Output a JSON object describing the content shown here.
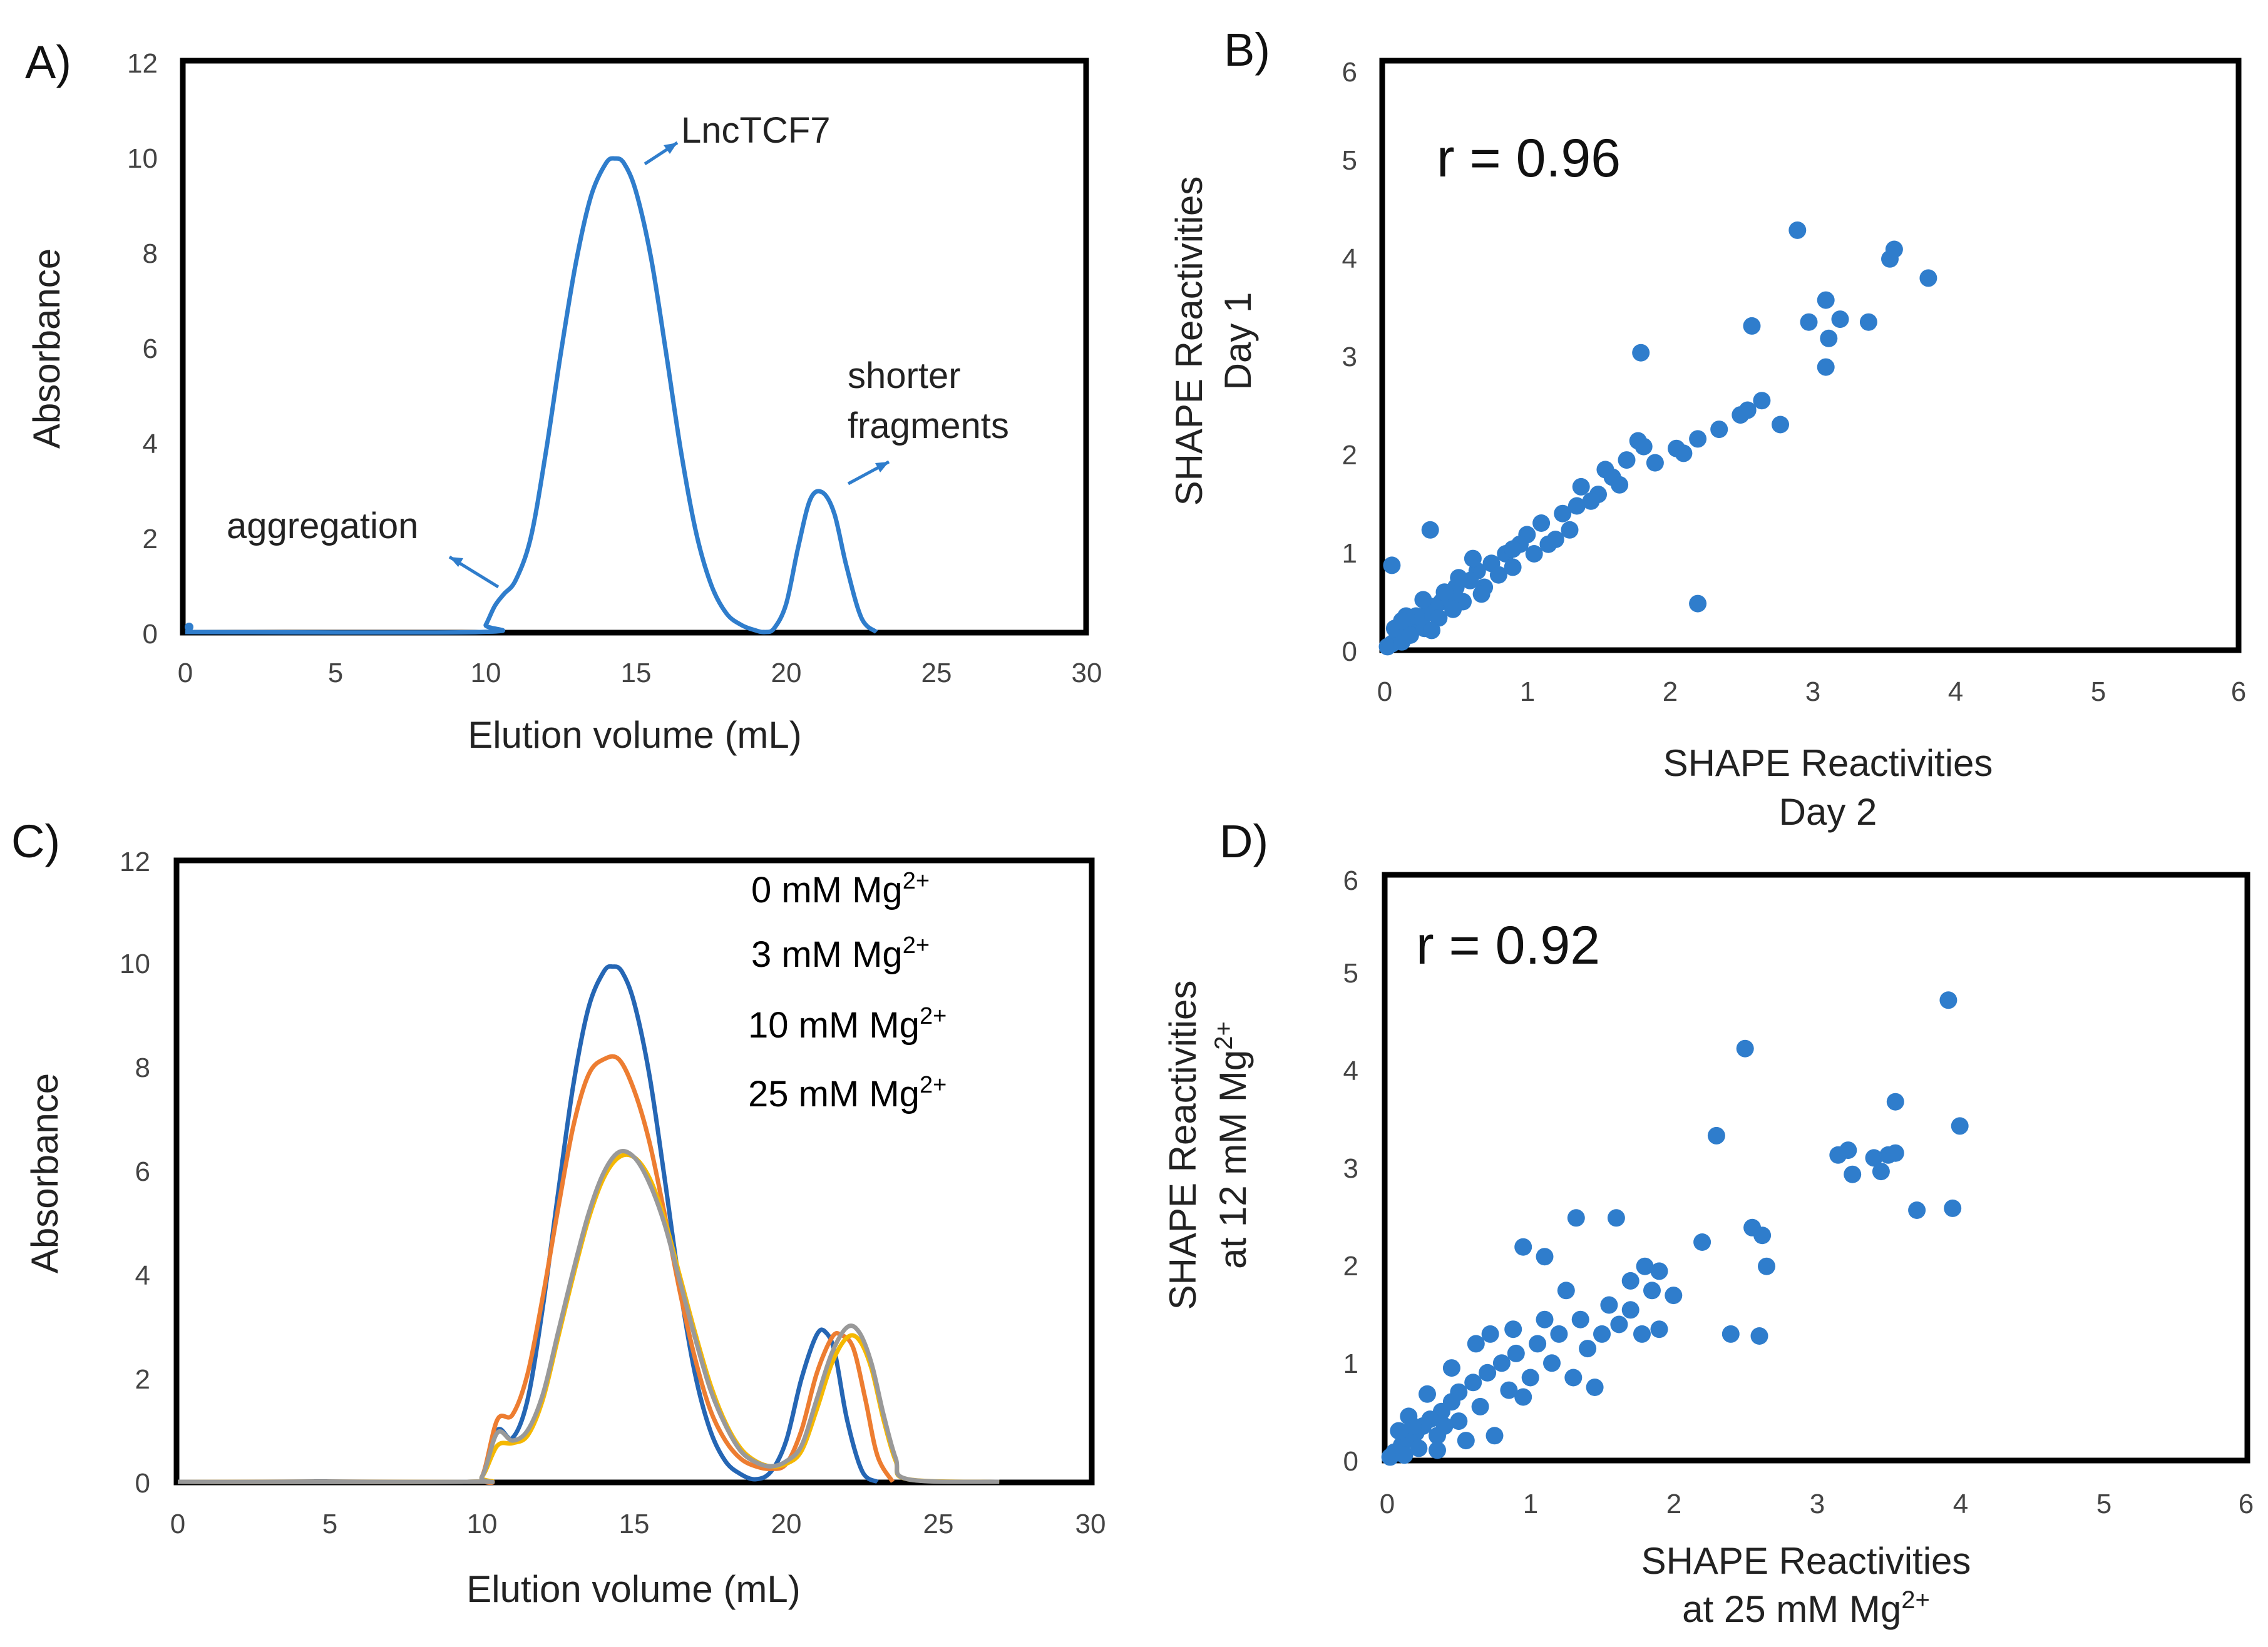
{
  "chart_data": [
    {
      "panel": "A)",
      "type": "line",
      "xlabel": "Elution volume (mL)",
      "ylabel": "Absorbance",
      "xlim": [
        0,
        30
      ],
      "ylim": [
        0,
        12
      ],
      "xticks": [
        "0",
        "5",
        "10",
        "15",
        "20",
        "25",
        "30"
      ],
      "yticks": [
        "0",
        "2",
        "4",
        "6",
        "8",
        "10",
        "12"
      ],
      "series": [
        {
          "name": "LncTCF7 elution",
          "color": "#2f7dcc",
          "x": [
            0,
            9.8,
            10,
            10.3,
            10.6,
            11,
            11.5,
            12,
            12.5,
            13,
            13.5,
            14,
            14.3,
            14.6,
            15,
            15.5,
            16,
            16.5,
            17,
            17.5,
            18,
            18.5,
            19,
            19.3,
            19.6,
            20,
            20.4,
            20.8,
            21.2,
            21.6,
            22,
            22.5,
            23
          ],
          "y": [
            0,
            0,
            0.15,
            0.55,
            0.8,
            1.1,
            2.0,
            3.8,
            5.9,
            7.8,
            9.2,
            9.9,
            10.0,
            9.9,
            9.3,
            7.9,
            5.9,
            3.8,
            2.1,
            1.0,
            0.4,
            0.15,
            0.03,
            0.0,
            0.08,
            0.6,
            1.8,
            2.8,
            2.95,
            2.5,
            1.4,
            0.3,
            0.0
          ]
        }
      ],
      "annotations": [
        {
          "text": "LncTCF7"
        },
        {
          "text": "aggregation"
        },
        {
          "text": "shorter"
        },
        {
          "text": "fragments"
        }
      ]
    },
    {
      "panel": "B)",
      "type": "scatter",
      "xlabel_line1": "SHAPE Reactivities",
      "xlabel_line2": "Day 2",
      "ylabel_line1": "SHAPE Reactivities",
      "ylabel_line2": "Day 1",
      "xlim": [
        0,
        6
      ],
      "ylim": [
        0,
        6
      ],
      "xticks": [
        "0",
        "1",
        "2",
        "3",
        "4",
        "5",
        "6"
      ],
      "yticks": [
        "0",
        "1",
        "2",
        "3",
        "4",
        "5",
        "6"
      ],
      "r_label": "r = 0.96",
      "color": "#2f7dcc",
      "points": [
        [
          2.9,
          4.38
        ],
        [
          3.55,
          4.08
        ],
        [
          3.58,
          4.18
        ],
        [
          3.82,
          3.88
        ],
        [
          3.1,
          3.65
        ],
        [
          3.2,
          3.45
        ],
        [
          2.98,
          3.42
        ],
        [
          3.12,
          3.25
        ],
        [
          3.4,
          3.42
        ],
        [
          2.58,
          3.38
        ],
        [
          3.1,
          2.95
        ],
        [
          1.8,
          3.1
        ],
        [
          2.65,
          2.6
        ],
        [
          2.55,
          2.5
        ],
        [
          2.5,
          2.45
        ],
        [
          2.78,
          2.35
        ],
        [
          2.35,
          2.3
        ],
        [
          2.2,
          2.2
        ],
        [
          2.05,
          2.1
        ],
        [
          1.78,
          2.18
        ],
        [
          1.82,
          2.12
        ],
        [
          1.7,
          1.98
        ],
        [
          1.55,
          1.88
        ],
        [
          1.38,
          1.7
        ],
        [
          1.5,
          1.62
        ],
        [
          1.25,
          1.42
        ],
        [
          1.1,
          1.32
        ],
        [
          1.0,
          1.2
        ],
        [
          0.05,
          0.88
        ],
        [
          0.32,
          1.25
        ],
        [
          2.2,
          0.48
        ],
        [
          1.6,
          1.8
        ],
        [
          1.9,
          1.95
        ],
        [
          2.1,
          2.05
        ],
        [
          1.45,
          1.55
        ],
        [
          1.65,
          1.72
        ],
        [
          0.95,
          1.1
        ],
        [
          0.85,
          1.0
        ],
        [
          0.75,
          0.9
        ],
        [
          0.65,
          0.82
        ],
        [
          0.6,
          0.72
        ],
        [
          0.5,
          0.65
        ],
        [
          0.45,
          0.55
        ],
        [
          0.4,
          0.5
        ],
        [
          0.35,
          0.45
        ],
        [
          0.3,
          0.38
        ],
        [
          0.25,
          0.3
        ],
        [
          0.2,
          0.25
        ],
        [
          0.15,
          0.2
        ],
        [
          0.1,
          0.14
        ],
        [
          0.08,
          0.1
        ],
        [
          0.05,
          0.06
        ],
        [
          0.02,
          0.03
        ],
        [
          0.12,
          0.08
        ],
        [
          0.18,
          0.15
        ],
        [
          0.28,
          0.22
        ],
        [
          0.38,
          0.33
        ],
        [
          0.55,
          0.5
        ],
        [
          0.7,
          0.65
        ],
        [
          0.8,
          0.78
        ],
        [
          0.9,
          0.86
        ],
        [
          1.05,
          1.0
        ],
        [
          1.15,
          1.1
        ],
        [
          1.3,
          1.25
        ],
        [
          0.22,
          0.35
        ],
        [
          0.42,
          0.6
        ],
        [
          0.62,
          0.95
        ],
        [
          0.48,
          0.42
        ],
        [
          0.33,
          0.2
        ],
        [
          0.15,
          0.35
        ],
        [
          0.07,
          0.22
        ],
        [
          0.9,
          1.05
        ],
        [
          1.2,
          1.15
        ],
        [
          1.35,
          1.5
        ],
        [
          0.68,
          0.58
        ],
        [
          0.52,
          0.75
        ],
        [
          0.27,
          0.52
        ],
        [
          0.12,
          0.3
        ]
      ]
    },
    {
      "panel": "C)",
      "type": "line",
      "xlabel": "Elution volume (mL)",
      "ylabel": "Absorbance",
      "xlim": [
        0,
        30
      ],
      "ylim": [
        0,
        12
      ],
      "xticks": [
        "0",
        "5",
        "10",
        "15",
        "20",
        "25",
        "30"
      ],
      "yticks": [
        "0",
        "2",
        "4",
        "6",
        "8",
        "10",
        "12"
      ],
      "series": [
        {
          "name": "0 mM Mg²⁺",
          "color": "#2566b4",
          "x": [
            0,
            9.5,
            10,
            10.5,
            11,
            11.5,
            12,
            12.5,
            13,
            13.5,
            14,
            14.3,
            14.6,
            15,
            15.5,
            16,
            16.5,
            17,
            17.5,
            18,
            18.5,
            19,
            19.5,
            20,
            20.5,
            21,
            21.3,
            21.6,
            22,
            22.5,
            23
          ],
          "y": [
            0,
            0,
            0.1,
            1.0,
            0.85,
            1.6,
            3.4,
            5.6,
            7.7,
            9.2,
            9.9,
            10.0,
            9.9,
            9.3,
            7.9,
            5.9,
            3.8,
            2.1,
            1.0,
            0.4,
            0.15,
            0.05,
            0.2,
            0.8,
            2.0,
            2.85,
            2.9,
            2.5,
            1.2,
            0.2,
            0.0
          ]
        },
        {
          "name": "3 mM Mg²⁺",
          "color": "#ed7d31",
          "x": [
            0,
            9.5,
            10,
            10.5,
            11,
            11.5,
            12,
            12.5,
            13,
            13.5,
            14,
            14.5,
            15,
            15.5,
            16,
            16.5,
            17,
            17.5,
            18,
            18.5,
            19,
            19.5,
            20,
            20.5,
            21,
            21.5,
            21.8,
            22.2,
            22.6,
            23,
            23.5
          ],
          "y": [
            0,
            0,
            0.1,
            1.2,
            1.3,
            2.1,
            3.6,
            5.3,
            6.9,
            7.9,
            8.2,
            8.2,
            7.6,
            6.6,
            5.2,
            3.7,
            2.4,
            1.4,
            0.8,
            0.45,
            0.3,
            0.25,
            0.35,
            1.0,
            2.1,
            2.8,
            2.85,
            2.6,
            1.6,
            0.5,
            0.0
          ]
        },
        {
          "name": "10 mM Mg²⁺",
          "color": "#f5b800",
          "x": [
            0,
            9.5,
            10,
            10.5,
            11,
            11.5,
            12,
            12.5,
            13,
            13.5,
            14,
            14.5,
            15,
            15.5,
            16,
            16.5,
            17,
            17.5,
            18,
            18.5,
            19,
            19.5,
            20,
            20.5,
            21,
            21.5,
            22,
            22.4,
            22.8,
            23.2,
            23.6,
            24,
            27
          ],
          "y": [
            0,
            0,
            0.1,
            0.7,
            0.75,
            0.9,
            1.6,
            2.8,
            4.0,
            5.1,
            5.9,
            6.3,
            6.3,
            5.9,
            5.1,
            4.0,
            2.9,
            1.9,
            1.15,
            0.65,
            0.4,
            0.3,
            0.35,
            0.6,
            1.4,
            2.3,
            2.8,
            2.75,
            2.2,
            1.2,
            0.4,
            0.05,
            0.0
          ]
        },
        {
          "name": "25 mM Mg²⁺",
          "color": "#999999",
          "x": [
            0,
            9.5,
            10,
            10.5,
            11,
            11.5,
            12,
            12.5,
            13,
            13.5,
            14,
            14.5,
            15,
            15.5,
            16,
            16.5,
            17,
            17.5,
            18,
            18.5,
            19,
            19.5,
            20,
            20.5,
            21,
            21.5,
            22,
            22.4,
            22.8,
            23.2,
            23.6,
            24,
            27
          ],
          "y": [
            0,
            0,
            0.1,
            0.95,
            0.8,
            1.0,
            1.7,
            2.9,
            4.1,
            5.2,
            6.0,
            6.4,
            6.3,
            5.8,
            5.0,
            3.9,
            2.8,
            1.8,
            1.1,
            0.6,
            0.38,
            0.3,
            0.4,
            0.7,
            1.6,
            2.5,
            3.0,
            2.9,
            2.3,
            1.3,
            0.45,
            0.05,
            0.0
          ]
        }
      ],
      "legend": [
        {
          "text": "0 mM Mg",
          "sup": "2+",
          "color": "#2566b4"
        },
        {
          "text": "3 mM Mg",
          "sup": "2+",
          "color": "#ed7d31"
        },
        {
          "text": "10 mM Mg",
          "sup": "2+",
          "color": "#d9a200"
        },
        {
          "text": "25 mM Mg",
          "sup": "2+",
          "color": "#8a8a8a"
        }
      ]
    },
    {
      "panel": "D)",
      "type": "scatter",
      "xlabel_line1": "SHAPE Reactivities",
      "xlabel_line2": "at 25 mM Mg",
      "xlabel_sup": "2+",
      "ylabel_line1": "SHAPE Reactivities",
      "ylabel_line2": "at 12 mM Mg",
      "ylabel_sup": "2+",
      "xlim": [
        0,
        6
      ],
      "ylim": [
        0,
        6
      ],
      "xticks": [
        "0",
        "1",
        "2",
        "3",
        "4",
        "5",
        "6"
      ],
      "yticks": [
        "0",
        "1",
        "2",
        "3",
        "4",
        "5",
        "6"
      ],
      "r_label": "r = 0.92",
      "color": "#2f7dcc",
      "points": [
        [
          3.92,
          4.75
        ],
        [
          2.5,
          4.25
        ],
        [
          3.55,
          3.7
        ],
        [
          4.0,
          3.45
        ],
        [
          2.3,
          3.35
        ],
        [
          3.15,
          3.15
        ],
        [
          3.22,
          3.2
        ],
        [
          3.4,
          3.12
        ],
        [
          3.5,
          3.15
        ],
        [
          3.55,
          3.17
        ],
        [
          3.25,
          2.95
        ],
        [
          3.45,
          2.98
        ],
        [
          3.7,
          2.58
        ],
        [
          3.95,
          2.6
        ],
        [
          2.55,
          2.4
        ],
        [
          2.62,
          2.32
        ],
        [
          2.2,
          2.25
        ],
        [
          2.65,
          2.0
        ],
        [
          2.4,
          1.3
        ],
        [
          2.6,
          1.28
        ],
        [
          1.9,
          1.35
        ],
        [
          1.78,
          1.3
        ],
        [
          1.6,
          2.5
        ],
        [
          1.32,
          2.5
        ],
        [
          1.8,
          2.0
        ],
        [
          1.9,
          1.95
        ],
        [
          2.0,
          1.7
        ],
        [
          1.7,
          1.85
        ],
        [
          1.55,
          1.6
        ],
        [
          1.25,
          1.75
        ],
        [
          1.1,
          2.1
        ],
        [
          0.95,
          2.2
        ],
        [
          1.35,
          1.45
        ],
        [
          1.2,
          1.3
        ],
        [
          1.05,
          1.2
        ],
        [
          0.9,
          1.1
        ],
        [
          0.8,
          1.0
        ],
        [
          0.7,
          0.9
        ],
        [
          0.6,
          0.8
        ],
        [
          0.5,
          0.7
        ],
        [
          0.45,
          0.6
        ],
        [
          0.38,
          0.5
        ],
        [
          0.3,
          0.42
        ],
        [
          0.25,
          0.35
        ],
        [
          0.2,
          0.28
        ],
        [
          0.15,
          0.22
        ],
        [
          0.1,
          0.15
        ],
        [
          0.05,
          0.08
        ],
        [
          0.02,
          0.03
        ],
        [
          0.12,
          0.05
        ],
        [
          0.22,
          0.12
        ],
        [
          0.35,
          0.25
        ],
        [
          0.5,
          0.4
        ],
        [
          0.65,
          0.55
        ],
        [
          0.75,
          0.25
        ],
        [
          0.55,
          0.2
        ],
        [
          0.4,
          0.35
        ],
        [
          0.85,
          0.72
        ],
        [
          1.0,
          0.85
        ],
        [
          1.15,
          1.0
        ],
        [
          1.4,
          1.15
        ],
        [
          1.5,
          1.3
        ],
        [
          0.62,
          1.2
        ],
        [
          0.72,
          1.3
        ],
        [
          0.45,
          0.95
        ],
        [
          0.28,
          0.68
        ],
        [
          0.15,
          0.45
        ],
        [
          0.08,
          0.3
        ],
        [
          1.45,
          0.75
        ],
        [
          1.3,
          0.85
        ],
        [
          0.95,
          0.65
        ],
        [
          1.7,
          1.55
        ],
        [
          1.85,
          1.75
        ],
        [
          1.62,
          1.4
        ],
        [
          0.35,
          0.1
        ],
        [
          0.18,
          0.35
        ],
        [
          1.1,
          1.45
        ],
        [
          0.88,
          1.35
        ]
      ]
    }
  ]
}
